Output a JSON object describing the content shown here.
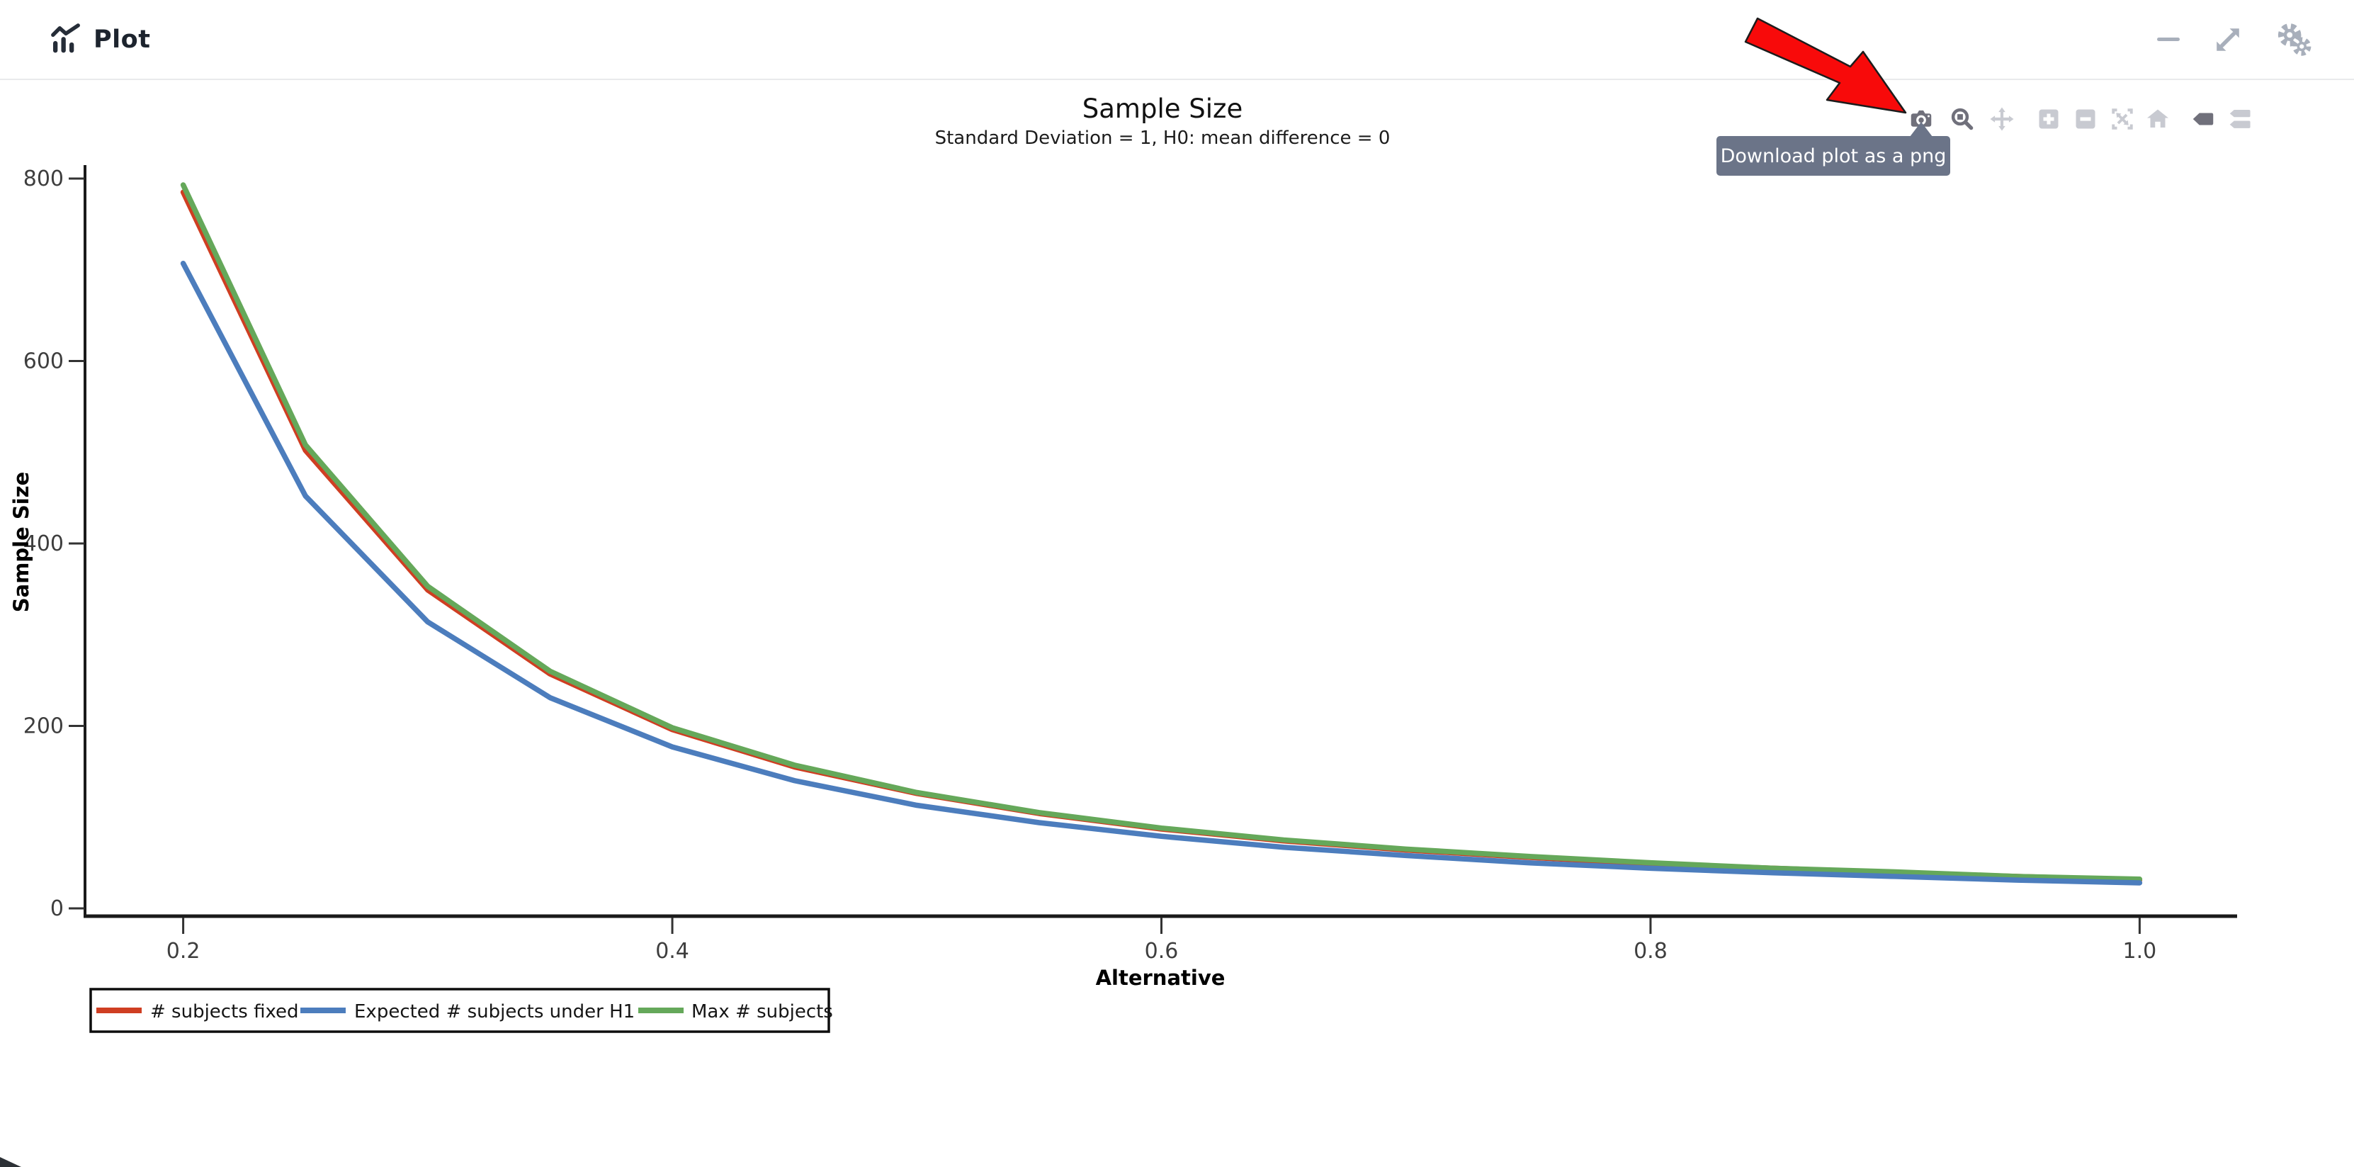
{
  "header": {
    "title": "Plot"
  },
  "window_controls": {
    "minimize": "minimize",
    "expand": "expand",
    "settings": "settings"
  },
  "modebar": {
    "tooltip": "Download plot as a png",
    "buttons": [
      {
        "name": "download-png",
        "state": "hovered"
      },
      {
        "name": "zoom",
        "state": "active"
      },
      {
        "name": "pan",
        "state": "inactive"
      },
      {
        "name": "zoom-in",
        "state": "inactive"
      },
      {
        "name": "zoom-out",
        "state": "inactive"
      },
      {
        "name": "autoscale",
        "state": "inactive"
      },
      {
        "name": "reset-axes",
        "state": "inactive"
      },
      {
        "name": "hover-closest",
        "state": "active"
      },
      {
        "name": "hover-compare",
        "state": "inactive"
      }
    ]
  },
  "annotation": {
    "type": "arrow",
    "color": "#f80a0a",
    "points_to": "download-png-button"
  },
  "chart_data": {
    "type": "line",
    "title": "Sample Size",
    "subtitle": "Standard Deviation = 1, H0: mean difference = 0",
    "xlabel": "Alternative",
    "ylabel": "Sample Size",
    "xlim": [
      0.16,
      1.04
    ],
    "ylim": [
      0,
      815
    ],
    "x_ticks": [
      0.2,
      0.4,
      0.6,
      0.8,
      1.0
    ],
    "y_ticks": [
      0,
      200,
      400,
      600,
      800
    ],
    "grid": false,
    "legend_position": "bottom-left-horizontal",
    "x": [
      0.2,
      0.25,
      0.3,
      0.35,
      0.4,
      0.45,
      0.5,
      0.55,
      0.6,
      0.65,
      0.7,
      0.75,
      0.8,
      0.85,
      0.9,
      0.95,
      1.0
    ],
    "series": [
      {
        "name": "# subjects fixed",
        "color": "#cf3e22",
        "values": [
          785,
          502,
          349,
          257,
          196,
          155,
          126,
          104,
          87,
          74,
          64,
          56,
          49,
          44,
          39,
          35,
          31
        ]
      },
      {
        "name": "Expected # subjects under H1",
        "color": "#4c7dbd",
        "values": [
          707,
          452,
          314,
          231,
          177,
          140,
          113,
          94,
          79,
          67,
          58,
          50,
          44,
          39,
          35,
          31,
          28
        ]
      },
      {
        "name": "Max # subjects",
        "color": "#65a85a",
        "values": [
          793,
          508,
          353,
          260,
          198,
          157,
          127,
          105,
          88,
          75,
          65,
          57,
          50,
          44,
          40,
          35,
          32
        ]
      }
    ]
  }
}
